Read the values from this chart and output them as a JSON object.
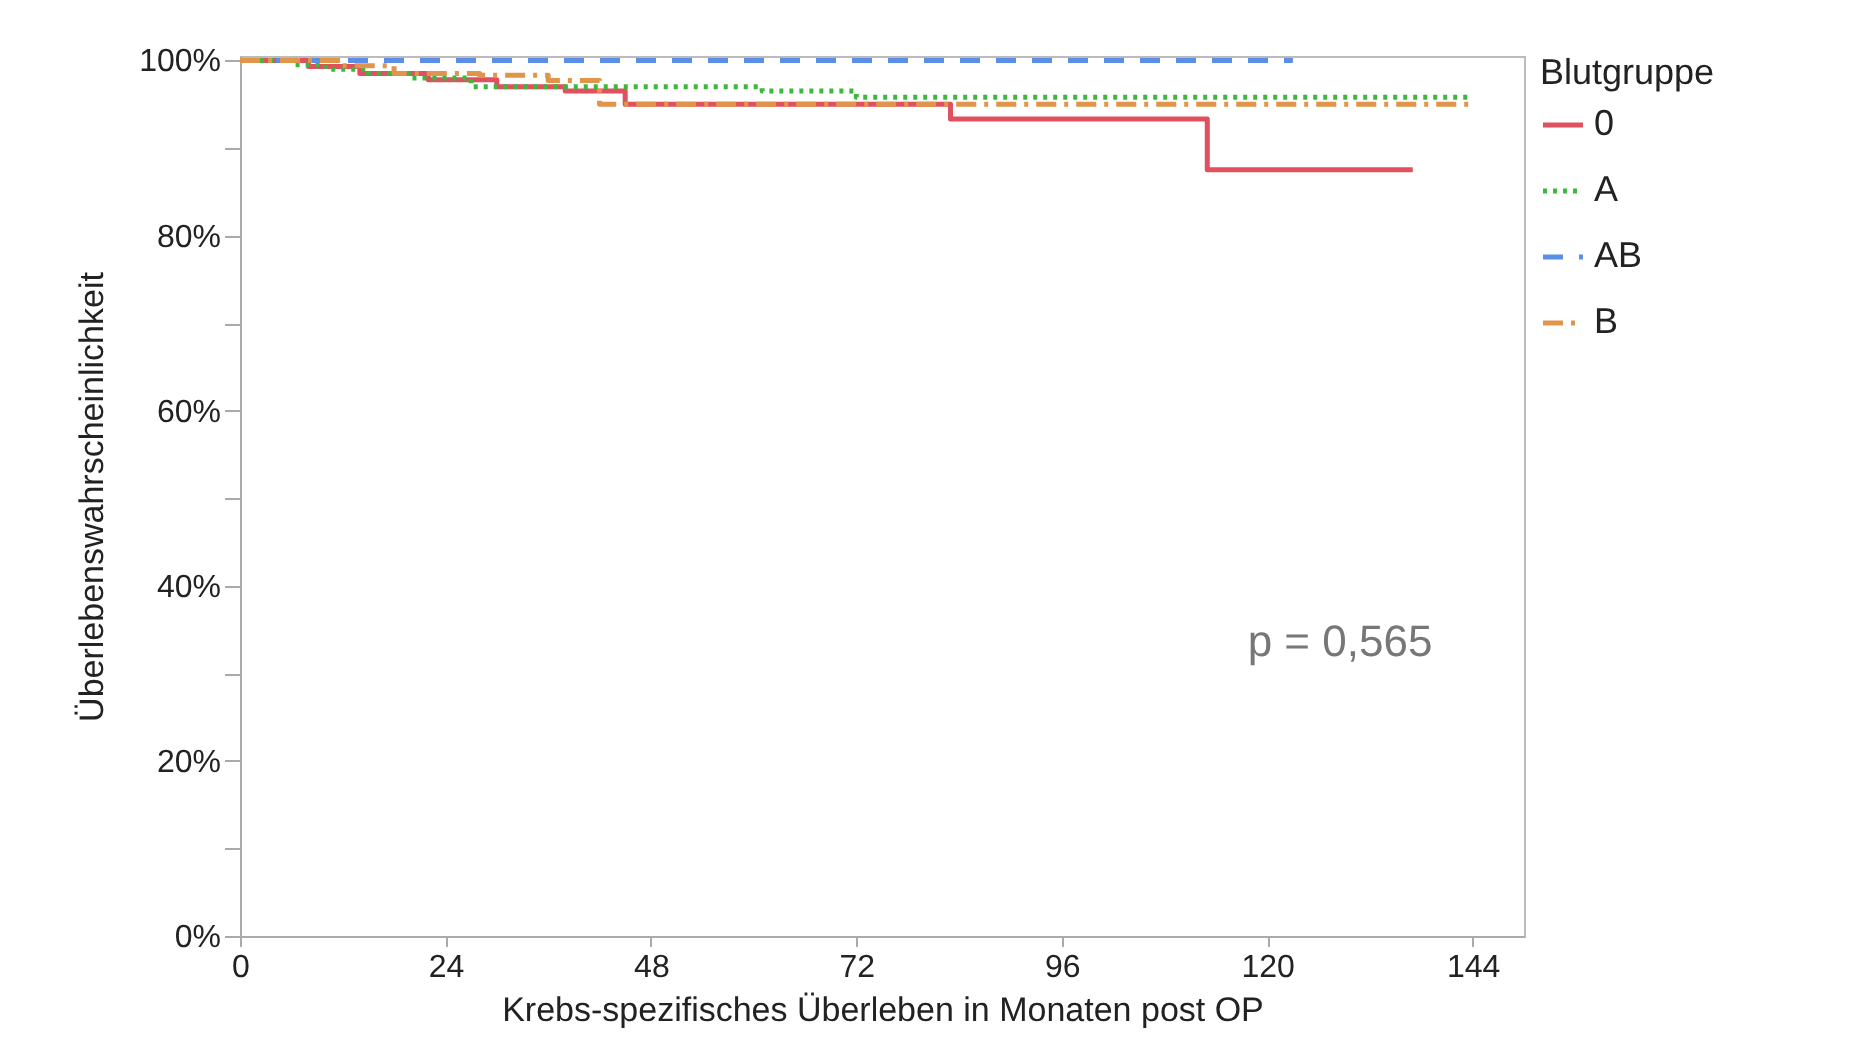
{
  "chart_data": {
    "type": "step",
    "xlabel": "Krebs-spezifisches Überleben in Monaten post OP",
    "ylabel": "Überlebenswahrscheinlichkeit",
    "legend_title": "Blutgruppe",
    "legend": "right",
    "xlim": [
      0,
      150
    ],
    "xticks": [
      0,
      24,
      48,
      72,
      96,
      120,
      144
    ],
    "ylim": [
      0,
      100.5
    ],
    "yticks": [
      {
        "value": 0,
        "label": "0%"
      },
      {
        "value": 10,
        "label": null
      },
      {
        "value": 20,
        "label": "20%"
      },
      {
        "value": 30,
        "label": null
      },
      {
        "value": 40,
        "label": "40%"
      },
      {
        "value": 50,
        "label": null
      },
      {
        "value": 60,
        "label": "60%"
      },
      {
        "value": 70,
        "label": null
      },
      {
        "value": 80,
        "label": "80%"
      },
      {
        "value": 90,
        "label": null
      },
      {
        "value": 100,
        "label": "100%"
      }
    ],
    "annotations": [
      "p = 0,565"
    ],
    "series": [
      {
        "name": "0",
        "color": "#e0505f",
        "line_style": "solid",
        "x": [
          0,
          8,
          14,
          22,
          30,
          38,
          45,
          83,
          113,
          137
        ],
        "values": [
          100,
          99.3,
          98.5,
          97.8,
          97,
          96.5,
          95,
          93.3,
          87.5,
          87.5
        ]
      },
      {
        "name": "A",
        "color": "#3cb83c",
        "line_style": "dotted",
        "x": [
          0,
          6,
          10,
          15,
          20,
          27,
          61,
          72,
          144
        ],
        "values": [
          100,
          99.5,
          99,
          98.5,
          98,
          97,
          96.5,
          95.8,
          95.8
        ]
      },
      {
        "name": "AB",
        "color": "#5b8ee6",
        "line_style": "dashed",
        "x": [
          0,
          123
        ],
        "values": [
          100,
          100
        ]
      },
      {
        "name": "B",
        "color": "#e0954a",
        "line_style": "dashdot",
        "x": [
          0,
          12,
          18,
          28,
          36,
          42,
          144
        ],
        "values": [
          100,
          99.4,
          98.5,
          98.3,
          97.7,
          95,
          95
        ]
      }
    ]
  }
}
